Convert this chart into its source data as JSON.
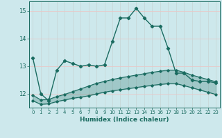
{
  "xlabel": "Humidex (Indice chaleur)",
  "background_color": "#cde8ec",
  "grid_color": "#b8d8dc",
  "line_color": "#1a6b60",
  "x_values": [
    0,
    1,
    2,
    3,
    4,
    5,
    6,
    7,
    8,
    9,
    10,
    11,
    12,
    13,
    14,
    15,
    16,
    17,
    18,
    19,
    20,
    21,
    22,
    23
  ],
  "main_line": [
    13.3,
    12.0,
    11.75,
    12.85,
    13.2,
    13.1,
    13.0,
    13.05,
    13.0,
    13.05,
    13.9,
    14.75,
    14.75,
    15.1,
    14.75,
    14.45,
    14.45,
    13.65,
    12.75,
    12.75,
    12.5,
    12.45,
    12.45,
    12.4
  ],
  "upper_band": [
    11.95,
    11.78,
    11.8,
    11.9,
    11.98,
    12.08,
    12.18,
    12.28,
    12.38,
    12.45,
    12.52,
    12.58,
    12.63,
    12.68,
    12.73,
    12.78,
    12.82,
    12.86,
    12.86,
    12.78,
    12.68,
    12.6,
    12.52,
    12.44
  ],
  "lower_band": [
    11.75,
    11.62,
    11.64,
    11.72,
    11.78,
    11.84,
    11.88,
    11.93,
    12.0,
    12.06,
    12.11,
    12.15,
    12.19,
    12.23,
    12.27,
    12.31,
    12.34,
    12.37,
    12.37,
    12.3,
    12.22,
    12.14,
    12.06,
    11.98
  ],
  "ylim": [
    11.5,
    15.35
  ],
  "yticks": [
    12,
    13,
    14,
    15
  ],
  "xticks": [
    0,
    1,
    2,
    3,
    4,
    5,
    6,
    7,
    8,
    9,
    10,
    11,
    12,
    13,
    14,
    15,
    16,
    17,
    18,
    19,
    20,
    21,
    22,
    23
  ]
}
